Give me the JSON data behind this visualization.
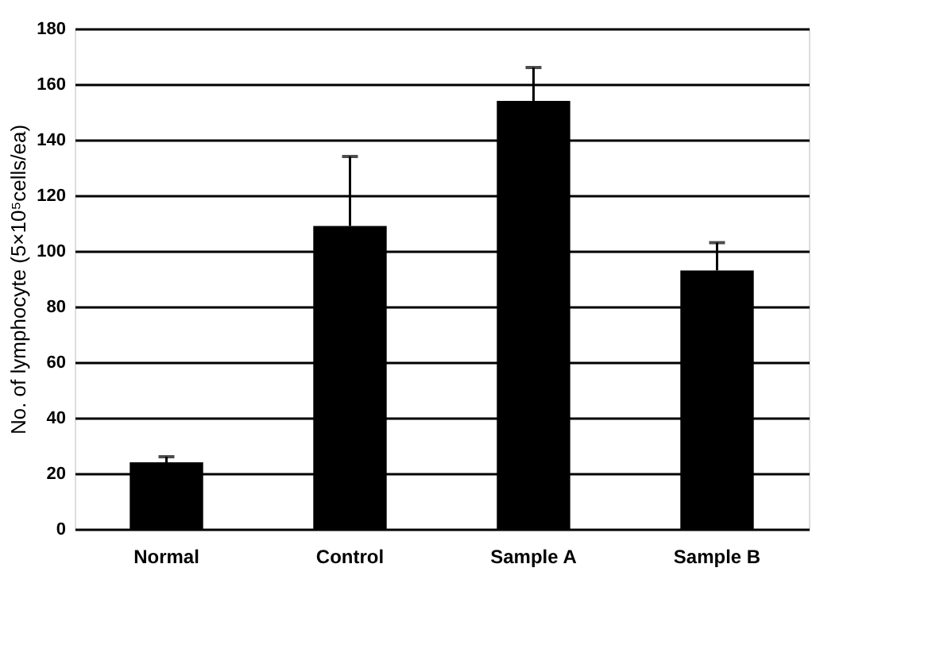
{
  "chart_data": {
    "type": "bar",
    "ylabel": "No. of lymphocyte (5×10⁵cells/ea)",
    "categories": [
      "Normal",
      "Control",
      "Sample A",
      "Sample B"
    ],
    "values": [
      24,
      109,
      154,
      93
    ],
    "errors": [
      2,
      25,
      12,
      10
    ],
    "color": "#000000",
    "ylim": [
      0,
      180
    ],
    "yticks": [
      0,
      20,
      40,
      60,
      80,
      100,
      120,
      140,
      160,
      180
    ],
    "grid": "y"
  }
}
